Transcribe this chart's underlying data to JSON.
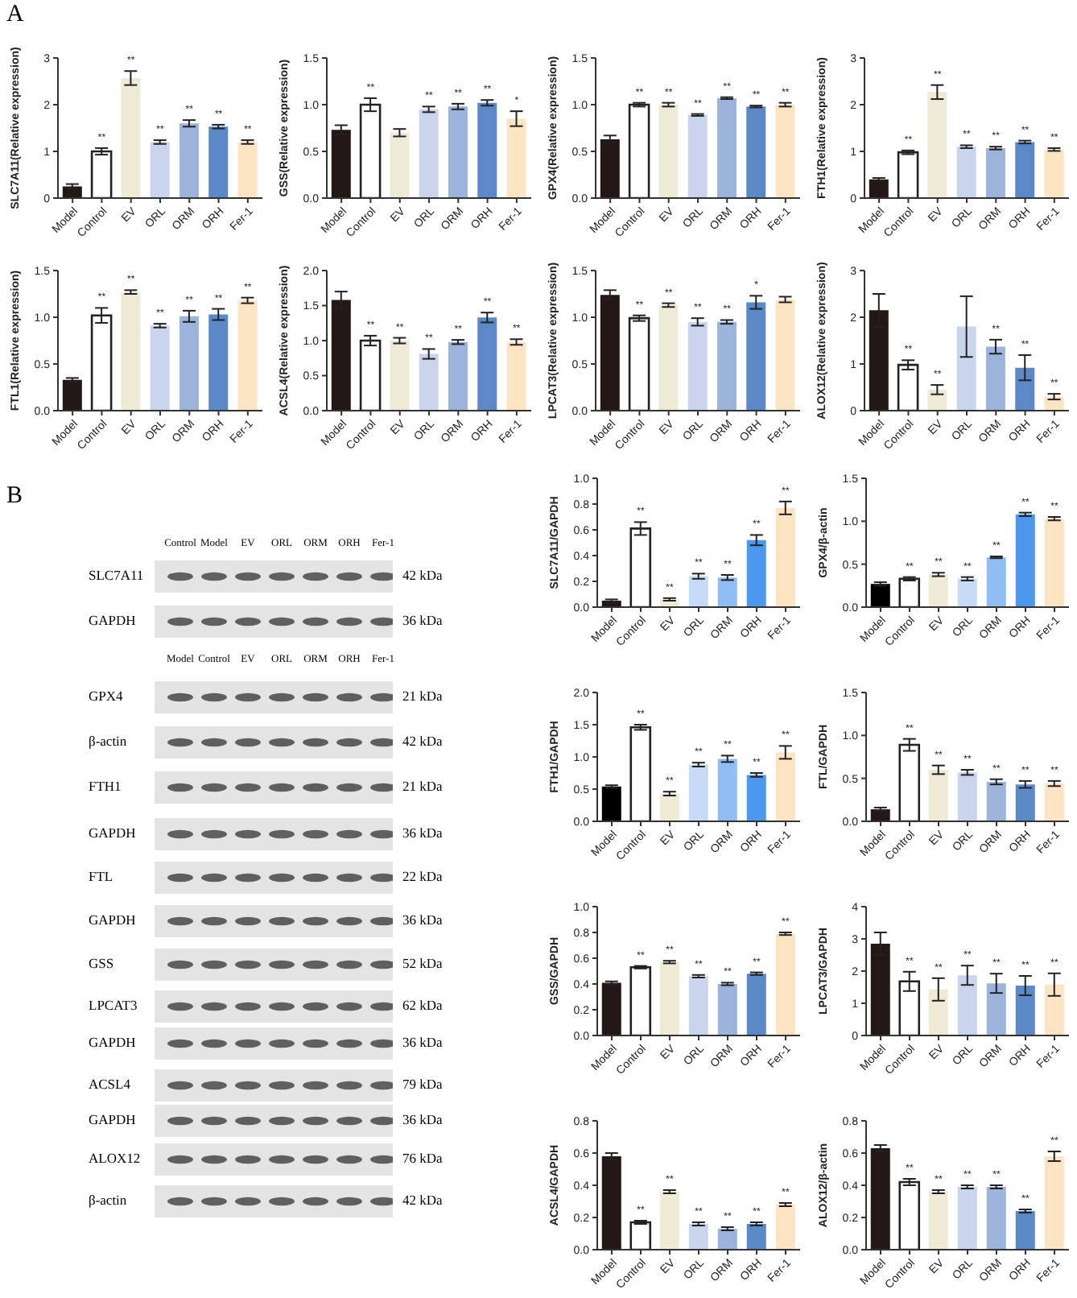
{
  "chart_data": [
    {
      "type": "bar",
      "annotations": [
        "A",
        {
          "text": "**",
          "x": "Control",
          "y": 1.07
        },
        {
          "text": "**",
          "x": "EV",
          "y": 2.72
        },
        {
          "text": "**",
          "x": "ORL",
          "y": 1.24
        },
        {
          "text": "**",
          "x": "ORM",
          "y": 1.67
        },
        {
          "text": "**",
          "x": "ORH",
          "y": 1.57
        },
        {
          "text": "**",
          "x": "Fer-1",
          "y": 1.24
        }
      ],
      "ylabel": "SLC7A11(Relative expression)",
      "categories": [
        "Model",
        "Control",
        "EV",
        "ORL",
        "ORM",
        "ORH",
        "Fer-1"
      ],
      "values": [
        0.25,
        1.0,
        2.57,
        1.2,
        1.6,
        1.53,
        1.2
      ],
      "errors": [
        0.05,
        0.07,
        0.15,
        0.04,
        0.07,
        0.04,
        0.04
      ],
      "colors": [
        "#231815",
        "#ffffff",
        "#efead6",
        "#c8d5ec",
        "#9cb3dc",
        "#5b89c7",
        "#fde4c2"
      ],
      "ylim": [
        0,
        3
      ],
      "yticks": [
        0,
        1,
        2,
        3
      ]
    },
    {
      "type": "bar",
      "annotations": [
        {
          "text": "**",
          "x": "Control",
          "y": 1.07
        },
        {
          "text": "**",
          "x": "ORL",
          "y": 0.98
        },
        {
          "text": "**",
          "x": "ORM",
          "y": 1.01
        },
        {
          "text": "**",
          "x": "ORH",
          "y": 1.05
        },
        {
          "text": "*",
          "x": "Fer-1",
          "y": 0.93
        }
      ],
      "ylabel": "GSS(Relative expression)",
      "categories": [
        "Model",
        "Control",
        "EV",
        "ORL",
        "ORM",
        "ORH",
        "Fer-1"
      ],
      "values": [
        0.73,
        1.0,
        0.7,
        0.95,
        0.98,
        1.02,
        0.85
      ],
      "errors": [
        0.05,
        0.07,
        0.04,
        0.03,
        0.03,
        0.03,
        0.08
      ],
      "colors": [
        "#231815",
        "#ffffff",
        "#efead6",
        "#c8d5ec",
        "#9cb3dc",
        "#5b89c7",
        "#fde4c2"
      ],
      "ylim": [
        0,
        1.5
      ],
      "yticks": [
        {
          "value": 0,
          "label": "0.0"
        },
        {
          "value": 0.5,
          "label": "0.5"
        },
        {
          "value": 1,
          "label": "1.0"
        },
        {
          "value": 1.5,
          "label": "1.5"
        }
      ]
    },
    {
      "type": "bar",
      "annotations": [
        {
          "text": "**",
          "x": "Control",
          "y": 1.02
        },
        {
          "text": "**",
          "x": "EV",
          "y": 1.02
        },
        {
          "text": "**",
          "x": "ORL",
          "y": 0.9
        },
        {
          "text": "**",
          "x": "ORM",
          "y": 1.08
        },
        {
          "text": "**",
          "x": "ORH",
          "y": 0.99
        },
        {
          "text": "**",
          "x": "Fer-1",
          "y": 1.02
        }
      ],
      "ylabel": "GPX4(Relative expression)",
      "categories": [
        "Model",
        "Control",
        "EV",
        "ORL",
        "ORM",
        "ORH",
        "Fer-1"
      ],
      "values": [
        0.63,
        1.0,
        1.0,
        0.89,
        1.07,
        0.98,
        1.0
      ],
      "errors": [
        0.04,
        0.02,
        0.02,
        0.01,
        0.01,
        0.01,
        0.02
      ],
      "colors": [
        "#231815",
        "#ffffff",
        "#efead6",
        "#c8d5ec",
        "#9cb3dc",
        "#5b89c7",
        "#fde4c2"
      ],
      "ylim": [
        0,
        1.5
      ],
      "yticks": [
        {
          "value": 0,
          "label": "0.0"
        },
        {
          "value": 0.5,
          "label": "0.5"
        },
        {
          "value": 1,
          "label": "1.0"
        },
        {
          "value": 1.5,
          "label": "1.5"
        }
      ]
    },
    {
      "type": "bar",
      "annotations": [
        {
          "text": "**",
          "x": "Control",
          "y": 1.02
        },
        {
          "text": "**",
          "x": "EV",
          "y": 2.42
        },
        {
          "text": "**",
          "x": "ORL",
          "y": 1.13
        },
        {
          "text": "**",
          "x": "ORM",
          "y": 1.1
        },
        {
          "text": "**",
          "x": "ORH",
          "y": 1.23
        },
        {
          "text": "**",
          "x": "Fer-1",
          "y": 1.07
        }
      ],
      "ylabel": "FTH1(Relative expression)",
      "categories": [
        "Model",
        "Control",
        "EV",
        "ORL",
        "ORM",
        "ORH",
        "Fer-1"
      ],
      "values": [
        0.4,
        0.98,
        2.27,
        1.1,
        1.07,
        1.2,
        1.04
      ],
      "errors": [
        0.03,
        0.04,
        0.15,
        0.03,
        0.03,
        0.03,
        0.03
      ],
      "colors": [
        "#231815",
        "#ffffff",
        "#efead6",
        "#c8d5ec",
        "#9cb3dc",
        "#5b89c7",
        "#fde4c2"
      ],
      "ylim": [
        0,
        3
      ],
      "yticks": [
        0,
        1,
        2,
        3
      ]
    },
    {
      "type": "bar",
      "annotations": [
        {
          "text": "**",
          "x": "Control",
          "y": 1.1
        },
        {
          "text": "**",
          "x": "EV",
          "y": 1.29
        },
        {
          "text": "**",
          "x": "ORL",
          "y": 0.93
        },
        {
          "text": "**",
          "x": "ORM",
          "y": 1.07
        },
        {
          "text": "**",
          "x": "ORH",
          "y": 1.09
        },
        {
          "text": "**",
          "x": "Fer-1",
          "y": 1.21
        }
      ],
      "ylabel": "FTL1(Relative expression)",
      "categories": [
        "Model",
        "Control",
        "EV",
        "ORL",
        "ORM",
        "ORH",
        "Fer-1"
      ],
      "values": [
        0.33,
        1.02,
        1.27,
        0.91,
        1.01,
        1.03,
        1.18
      ],
      "errors": [
        0.02,
        0.08,
        0.02,
        0.02,
        0.06,
        0.06,
        0.03
      ],
      "colors": [
        "#231815",
        "#ffffff",
        "#efead6",
        "#c8d5ec",
        "#9cb3dc",
        "#5b89c7",
        "#fde4c2"
      ],
      "ylim": [
        0,
        1.5
      ],
      "yticks": [
        {
          "value": 0,
          "label": "0.0"
        },
        {
          "value": 0.5,
          "label": "0.5"
        },
        {
          "value": 1,
          "label": "1.0"
        },
        {
          "value": 1.5,
          "label": "1.5"
        }
      ]
    },
    {
      "type": "bar",
      "annotations": [
        {
          "text": "**",
          "x": "Control",
          "y": 1.07
        },
        {
          "text": "**",
          "x": "EV",
          "y": 1.04
        },
        {
          "text": "**",
          "x": "ORL",
          "y": 0.88
        },
        {
          "text": "**",
          "x": "ORM",
          "y": 1.01
        },
        {
          "text": "**",
          "x": "ORH",
          "y": 1.4
        },
        {
          "text": "**",
          "x": "Fer-1",
          "y": 1.02
        }
      ],
      "ylabel": "ACSL4(Relative expression)",
      "categories": [
        "Model",
        "Control",
        "EV",
        "ORL",
        "ORM",
        "ORH",
        "Fer-1"
      ],
      "values": [
        1.58,
        1.0,
        1.0,
        0.81,
        0.98,
        1.33,
        0.98
      ],
      "errors": [
        0.12,
        0.07,
        0.04,
        0.07,
        0.03,
        0.07,
        0.04
      ],
      "colors": [
        "#231815",
        "#ffffff",
        "#efead6",
        "#c8d5ec",
        "#9cb3dc",
        "#5b89c7",
        "#fde4c2"
      ],
      "ylim": [
        0,
        2
      ],
      "yticks": [
        {
          "value": 0,
          "label": "0.0"
        },
        {
          "value": 0.5,
          "label": "0.5"
        },
        {
          "value": 1,
          "label": "1.0"
        },
        {
          "value": 1.5,
          "label": "1.5"
        },
        {
          "value": 2,
          "label": "2.0"
        }
      ]
    },
    {
      "type": "bar",
      "annotations": [
        {
          "text": "**",
          "x": "Control",
          "y": 1.02
        },
        {
          "text": "**",
          "x": "EV",
          "y": 1.15
        },
        {
          "text": "**",
          "x": "ORL",
          "y": 0.99
        },
        {
          "text": "**",
          "x": "ORM",
          "y": 0.97
        },
        {
          "text": "*",
          "x": "ORH",
          "y": 1.23
        }
      ],
      "ylabel": "LPCAT3(Relative expression)",
      "categories": [
        "Model",
        "Control",
        "EV",
        "ORL",
        "ORM",
        "ORH",
        "Fer-1"
      ],
      "values": [
        1.24,
        0.99,
        1.13,
        0.95,
        0.95,
        1.16,
        1.19
      ],
      "errors": [
        0.05,
        0.03,
        0.02,
        0.04,
        0.02,
        0.07,
        0.03
      ],
      "colors": [
        "#231815",
        "#ffffff",
        "#efead6",
        "#c8d5ec",
        "#9cb3dc",
        "#5b89c7",
        "#fde4c2"
      ],
      "ylim": [
        0,
        1.5
      ],
      "yticks": [
        {
          "value": 0,
          "label": "0.0"
        },
        {
          "value": 0.5,
          "label": "0.5"
        },
        {
          "value": 1,
          "label": "1.0"
        },
        {
          "value": 1.5,
          "label": "1.5"
        }
      ]
    },
    {
      "type": "bar",
      "annotations": [
        {
          "text": "**",
          "x": "Control",
          "y": 1.08
        },
        {
          "text": "**",
          "x": "EV",
          "y": 0.55
        },
        {
          "text": "**",
          "x": "ORM",
          "y": 1.52
        },
        {
          "text": "**",
          "x": "ORH",
          "y": 1.19
        },
        {
          "text": "**",
          "x": "Fer-1",
          "y": 0.36
        }
      ],
      "ylabel": "ALOX12(Relative expression)",
      "categories": [
        "Model",
        "Control",
        "EV",
        "ORL",
        "ORM",
        "ORH",
        "Fer-1"
      ],
      "values": [
        2.15,
        0.98,
        0.45,
        1.8,
        1.37,
        0.92,
        0.3
      ],
      "errors": [
        0.35,
        0.1,
        0.1,
        0.65,
        0.15,
        0.27,
        0.06
      ],
      "colors": [
        "#231815",
        "#ffffff",
        "#efead6",
        "#c8d5ec",
        "#9cb3dc",
        "#5b89c7",
        "#fde4c2"
      ],
      "ylim": [
        0,
        3
      ],
      "yticks": [
        0,
        1,
        2,
        3
      ]
    },
    {
      "type": "other",
      "annotations": [
        "B",
        "Model",
        "Control",
        "EV",
        "ORL",
        "ORM",
        "ORH",
        "Fer-1"
      ],
      "categories": [
        "Control",
        "Model",
        "EV",
        "ORL",
        "ORM",
        "ORH",
        "Fer-1"
      ],
      "y_categories": [
        "SLC7A11",
        "GAPDH",
        "GPX4",
        "β-actin",
        "FTH1",
        "GAPDH",
        "FTL",
        "GAPDH",
        "GSS",
        "LPCAT3",
        "GAPDH",
        "ACSL4",
        "GAPDH",
        "ALOX12",
        "β-actin"
      ],
      "y2_categories": [
        "42 kDa",
        "36 kDa",
        "21 kDa",
        "42 kDa",
        "21 kDa",
        "36 kDa",
        "22 kDa",
        "36 kDa",
        "52 kDa",
        "62 kDa",
        "36 kDa",
        "79 kDa",
        "36 kDa",
        "76 kDa",
        "42 kDa"
      ]
    },
    {
      "type": "bar",
      "annotations": [
        {
          "text": "**",
          "x": "Control",
          "y": 0.66
        },
        {
          "text": "**",
          "x": "EV",
          "y": 0.07
        },
        {
          "text": "**",
          "x": "ORL",
          "y": 0.26
        },
        {
          "text": "**",
          "x": "ORM",
          "y": 0.25
        },
        {
          "text": "**",
          "x": "ORH",
          "y": 0.56
        },
        {
          "text": "**",
          "x": "Fer-1",
          "y": 0.82
        }
      ],
      "ylabel": "SLC7A11/GAPDH",
      "categories": [
        "Model",
        "Control",
        "EV",
        "ORL",
        "ORM",
        "ORH",
        "Fer-1"
      ],
      "values": [
        0.05,
        0.61,
        0.06,
        0.24,
        0.23,
        0.52,
        0.77
      ],
      "errors": [
        0.01,
        0.05,
        0.01,
        0.02,
        0.02,
        0.04,
        0.05
      ],
      "colors": [
        "#231815",
        "#ffffff",
        "#efead6",
        "#c6dcf6",
        "#8fbdf4",
        "#4b98ee",
        "#fde4c2"
      ],
      "ylim": [
        0,
        1
      ],
      "yticks": [
        {
          "value": 0,
          "label": "0.0"
        },
        {
          "value": 0.2,
          "label": "0.2"
        },
        {
          "value": 0.4,
          "label": "0.4"
        },
        {
          "value": 0.6,
          "label": "0.6"
        },
        {
          "value": 0.8,
          "label": "0.8"
        },
        {
          "value": 1,
          "label": "1.0"
        }
      ]
    },
    {
      "type": "bar",
      "annotations": [
        {
          "text": "**",
          "x": "Control",
          "y": 0.35
        },
        {
          "text": "**",
          "x": "EV",
          "y": 0.4
        },
        {
          "text": "**",
          "x": "ORL",
          "y": 0.35
        },
        {
          "text": "**",
          "x": "ORM",
          "y": 0.59
        },
        {
          "text": "**",
          "x": "ORH",
          "y": 1.1
        },
        {
          "text": "**",
          "x": "Fer-1",
          "y": 1.05
        }
      ],
      "ylabel": "GPX4/β-actin",
      "categories": [
        "Model",
        "Control",
        "EV",
        "ORL",
        "ORM",
        "ORH",
        "Fer-1"
      ],
      "values": [
        0.27,
        0.33,
        0.38,
        0.33,
        0.58,
        1.08,
        1.03
      ],
      "errors": [
        0.02,
        0.02,
        0.02,
        0.02,
        0.01,
        0.02,
        0.02
      ],
      "colors": [
        "#000000",
        "#ffffff",
        "#efead6",
        "#c6dcf6",
        "#8fbdf4",
        "#4b98ee",
        "#fde4c2"
      ],
      "ylim": [
        0,
        1.5
      ],
      "yticks": [
        {
          "value": 0,
          "label": "0.0"
        },
        {
          "value": 0.5,
          "label": "0.5"
        },
        {
          "value": 1,
          "label": "1.0"
        },
        {
          "value": 1.5,
          "label": "1.5"
        }
      ]
    },
    {
      "type": "bar",
      "annotations": [
        {
          "text": "**",
          "x": "Control",
          "y": 1.5
        },
        {
          "text": "**",
          "x": "EV",
          "y": 0.46
        },
        {
          "text": "**",
          "x": "ORL",
          "y": 0.91
        },
        {
          "text": "**",
          "x": "ORM",
          "y": 1.02
        },
        {
          "text": "**",
          "x": "ORH",
          "y": 0.75
        },
        {
          "text": "**",
          "x": "Fer-1",
          "y": 1.17
        }
      ],
      "ylabel": "FTH1/GAPDH",
      "categories": [
        "Model",
        "Control",
        "EV",
        "ORL",
        "ORM",
        "ORH",
        "Fer-1"
      ],
      "values": [
        0.54,
        1.46,
        0.43,
        0.88,
        0.97,
        0.72,
        1.07
      ],
      "errors": [
        0.02,
        0.04,
        0.03,
        0.03,
        0.05,
        0.03,
        0.1
      ],
      "colors": [
        "#000000",
        "#ffffff",
        "#efead6",
        "#c6dcf6",
        "#8fbdf4",
        "#4b98ee",
        "#fde4c2"
      ],
      "ylim": [
        0,
        2
      ],
      "yticks": [
        {
          "value": 0,
          "label": "0.0"
        },
        {
          "value": 0.5,
          "label": "0.5"
        },
        {
          "value": 1,
          "label": "1.0"
        },
        {
          "value": 1.5,
          "label": "1.5"
        },
        {
          "value": 2,
          "label": "2.0"
        }
      ]
    },
    {
      "type": "bar",
      "annotations": [
        {
          "text": "**",
          "x": "Control",
          "y": 0.96
        },
        {
          "text": "**",
          "x": "EV",
          "y": 0.65
        },
        {
          "text": "**",
          "x": "ORL",
          "y": 0.6
        },
        {
          "text": "**",
          "x": "ORM",
          "y": 0.49
        },
        {
          "text": "**",
          "x": "ORH",
          "y": 0.47
        },
        {
          "text": "**",
          "x": "Fer-1",
          "y": 0.47
        }
      ],
      "ylabel": "FTL/GAPDH",
      "categories": [
        "Model",
        "Control",
        "EV",
        "ORL",
        "ORM",
        "ORH",
        "Fer-1"
      ],
      "values": [
        0.14,
        0.89,
        0.6,
        0.57,
        0.46,
        0.43,
        0.44
      ],
      "errors": [
        0.02,
        0.07,
        0.05,
        0.03,
        0.03,
        0.04,
        0.03
      ],
      "colors": [
        "#231815",
        "#ffffff",
        "#efead6",
        "#c8d5ec",
        "#9cb3dc",
        "#5b89c7",
        "#fde4c2"
      ],
      "ylim": [
        0,
        1.5
      ],
      "yticks": [
        {
          "value": 0,
          "label": "0.0"
        },
        {
          "value": 0.5,
          "label": "0.5"
        },
        {
          "value": 1,
          "label": "1.0"
        },
        {
          "value": 1.5,
          "label": "1.5"
        }
      ]
    },
    {
      "type": "bar",
      "annotations": [
        {
          "text": "**",
          "x": "Control",
          "y": 0.54
        },
        {
          "text": "**",
          "x": "EV",
          "y": 0.58
        },
        {
          "text": "**",
          "x": "ORL",
          "y": 0.47
        },
        {
          "text": "**",
          "x": "ORM",
          "y": 0.41
        },
        {
          "text": "**",
          "x": "ORH",
          "y": 0.49
        },
        {
          "text": "**",
          "x": "Fer-1",
          "y": 0.8
        }
      ],
      "ylabel": "GSS/GAPDH",
      "categories": [
        "Model",
        "Control",
        "EV",
        "ORL",
        "ORM",
        "ORH",
        "Fer-1"
      ],
      "values": [
        0.41,
        0.53,
        0.57,
        0.46,
        0.4,
        0.48,
        0.79
      ],
      "errors": [
        0.01,
        0.01,
        0.01,
        0.01,
        0.01,
        0.01,
        0.01
      ],
      "colors": [
        "#231815",
        "#ffffff",
        "#efead6",
        "#c8d5ec",
        "#9cb3dc",
        "#5b89c7",
        "#fde4c2"
      ],
      "ylim": [
        0,
        1
      ],
      "yticks": [
        {
          "value": 0,
          "label": "0.0"
        },
        {
          "value": 0.2,
          "label": "0.2"
        },
        {
          "value": 0.4,
          "label": "0.4"
        },
        {
          "value": 0.6,
          "label": "0.6"
        },
        {
          "value": 0.8,
          "label": "0.8"
        },
        {
          "value": 1,
          "label": "1.0"
        }
      ]
    },
    {
      "type": "bar",
      "annotations": [
        {
          "text": "**",
          "x": "Control",
          "y": 1.98
        },
        {
          "text": "**",
          "x": "EV",
          "y": 1.78
        },
        {
          "text": "**",
          "x": "ORL",
          "y": 2.17
        },
        {
          "text": "**",
          "x": "ORM",
          "y": 1.92
        },
        {
          "text": "**",
          "x": "ORH",
          "y": 1.85
        },
        {
          "text": "**",
          "x": "Fer-1",
          "y": 1.93
        }
      ],
      "ylabel": "LPCAT3/GAPDH",
      "categories": [
        "Model",
        "Control",
        "EV",
        "ORL",
        "ORM",
        "ORH",
        "Fer-1"
      ],
      "values": [
        2.85,
        1.68,
        1.43,
        1.87,
        1.62,
        1.55,
        1.58
      ],
      "errors": [
        0.35,
        0.3,
        0.35,
        0.3,
        0.3,
        0.3,
        0.35
      ],
      "colors": [
        "#231815",
        "#ffffff",
        "#efead6",
        "#c8d5ec",
        "#9cb3dc",
        "#5b89c7",
        "#fde4c2"
      ],
      "ylim": [
        0,
        4
      ],
      "yticks": [
        0,
        1,
        2,
        3,
        4
      ]
    },
    {
      "type": "bar",
      "annotations": [
        {
          "text": "**",
          "x": "Control",
          "y": 0.18
        },
        {
          "text": "**",
          "x": "EV",
          "y": 0.37
        },
        {
          "text": "**",
          "x": "ORL",
          "y": 0.17
        },
        {
          "text": "**",
          "x": "ORM",
          "y": 0.14
        },
        {
          "text": "**",
          "x": "ORH",
          "y": 0.17
        },
        {
          "text": "**",
          "x": "Fer-1",
          "y": 0.29
        }
      ],
      "ylabel": "ACSL4/GAPDH",
      "categories": [
        "Model",
        "Control",
        "EV",
        "ORL",
        "ORM",
        "ORH",
        "Fer-1"
      ],
      "values": [
        0.58,
        0.17,
        0.36,
        0.16,
        0.13,
        0.16,
        0.28
      ],
      "errors": [
        0.02,
        0.01,
        0.01,
        0.01,
        0.01,
        0.01,
        0.01
      ],
      "colors": [
        "#231815",
        "#ffffff",
        "#efead6",
        "#c8d5ec",
        "#9cb3dc",
        "#5b89c7",
        "#fde4c2"
      ],
      "ylim": [
        0,
        0.8
      ],
      "yticks": [
        {
          "value": 0,
          "label": "0.0"
        },
        {
          "value": 0.2,
          "label": "0.2"
        },
        {
          "value": 0.4,
          "label": "0.4"
        },
        {
          "value": 0.6,
          "label": "0.6"
        },
        {
          "value": 0.8,
          "label": "0.8"
        }
      ]
    },
    {
      "type": "bar",
      "annotations": [
        {
          "text": "**",
          "x": "Control",
          "y": 0.44
        },
        {
          "text": "**",
          "x": "EV",
          "y": 0.37
        },
        {
          "text": "**",
          "x": "ORL",
          "y": 0.4
        },
        {
          "text": "**",
          "x": "ORM",
          "y": 0.4
        },
        {
          "text": "**",
          "x": "ORH",
          "y": 0.25
        },
        {
          "text": "**",
          "x": "Fer-1",
          "y": 0.61
        }
      ],
      "ylabel": "ALOX12/β-actin",
      "categories": [
        "Model",
        "Control",
        "EV",
        "ORL",
        "ORM",
        "ORH",
        "Fer-1"
      ],
      "values": [
        0.63,
        0.42,
        0.36,
        0.39,
        0.39,
        0.24,
        0.58
      ],
      "errors": [
        0.02,
        0.02,
        0.01,
        0.01,
        0.01,
        0.01,
        0.03
      ],
      "colors": [
        "#231815",
        "#ffffff",
        "#efead6",
        "#c8d5ec",
        "#9cb3dc",
        "#5b89c7",
        "#fde4c2"
      ],
      "ylim": [
        0,
        0.8
      ],
      "yticks": [
        {
          "value": 0,
          "label": "0.0"
        },
        {
          "value": 0.2,
          "label": "0.2"
        },
        {
          "value": 0.4,
          "label": "0.4"
        },
        {
          "value": 0.6,
          "label": "0.6"
        },
        {
          "value": 0.8,
          "label": "0.8"
        }
      ]
    }
  ]
}
